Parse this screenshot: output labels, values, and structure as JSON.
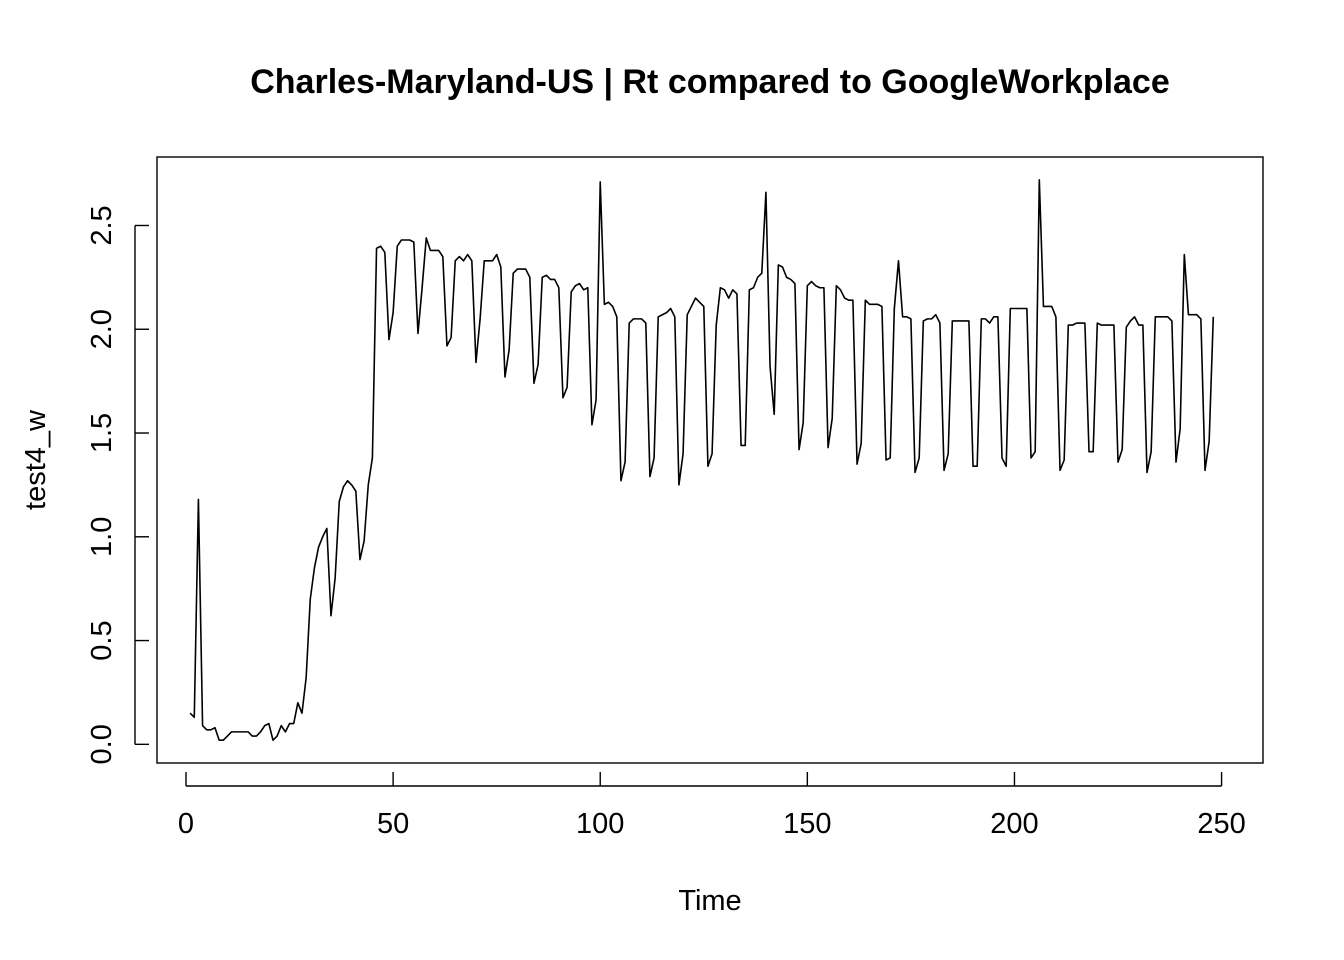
{
  "chart_data": {
    "type": "line",
    "title": "Charles-Maryland-US | Rt compared to GoogleWorkplace",
    "xlabel": "Time",
    "ylabel": "test4_w",
    "xlim": [
      -7,
      260
    ],
    "ylim": [
      -0.09,
      2.83
    ],
    "grid": false,
    "legend": "none",
    "x_ticks": [
      0,
      50,
      100,
      150,
      200,
      250
    ],
    "x_tick_labels": [
      "0",
      "50",
      "100",
      "150",
      "200",
      "250"
    ],
    "y_ticks": [
      0.0,
      0.5,
      1.0,
      1.5,
      2.0,
      2.5
    ],
    "y_tick_labels": [
      "0.0",
      "0.5",
      "1.0",
      "1.5",
      "2.0",
      "2.5"
    ],
    "series": [
      {
        "name": "",
        "x_start": 1,
        "values": [
          0.15,
          0.13,
          1.18,
          0.09,
          0.07,
          0.07,
          0.08,
          0.02,
          0.02,
          0.04,
          0.06,
          0.06,
          0.06,
          0.06,
          0.06,
          0.04,
          0.04,
          0.06,
          0.09,
          0.1,
          0.02,
          0.04,
          0.09,
          0.06,
          0.1,
          0.1,
          0.2,
          0.15,
          0.32,
          0.7,
          0.85,
          0.95,
          1.0,
          1.04,
          0.62,
          0.8,
          1.17,
          1.24,
          1.27,
          1.25,
          1.22,
          0.89,
          0.98,
          1.25,
          1.38,
          2.39,
          2.4,
          2.37,
          1.95,
          2.08,
          2.4,
          2.43,
          2.43,
          2.43,
          2.42,
          1.98,
          2.2,
          2.44,
          2.38,
          2.38,
          2.38,
          2.35,
          1.92,
          1.96,
          2.33,
          2.35,
          2.33,
          2.36,
          2.33,
          1.84,
          2.05,
          2.33,
          2.33,
          2.33,
          2.36,
          2.3,
          1.77,
          1.9,
          2.27,
          2.29,
          2.29,
          2.29,
          2.25,
          1.74,
          1.83,
          2.25,
          2.26,
          2.24,
          2.24,
          2.2,
          1.67,
          1.72,
          2.18,
          2.21,
          2.22,
          2.19,
          2.2,
          1.54,
          1.66,
          2.71,
          2.12,
          2.13,
          2.11,
          2.06,
          1.27,
          1.36,
          2.03,
          2.05,
          2.05,
          2.05,
          2.03,
          1.29,
          1.38,
          2.06,
          2.07,
          2.08,
          2.1,
          2.06,
          1.25,
          1.4,
          2.07,
          2.11,
          2.15,
          2.13,
          2.11,
          1.34,
          1.4,
          2.02,
          2.2,
          2.19,
          2.15,
          2.19,
          2.17,
          1.44,
          1.44,
          2.19,
          2.2,
          2.25,
          2.27,
          2.66,
          1.82,
          1.59,
          2.31,
          2.3,
          2.25,
          2.24,
          2.22,
          1.42,
          1.55,
          2.21,
          2.23,
          2.21,
          2.2,
          2.2,
          1.43,
          1.57,
          2.21,
          2.19,
          2.15,
          2.14,
          2.14,
          1.35,
          1.45,
          2.14,
          2.12,
          2.12,
          2.12,
          2.11,
          1.37,
          1.38,
          2.1,
          2.33,
          2.06,
          2.06,
          2.05,
          1.31,
          1.38,
          2.04,
          2.05,
          2.05,
          2.07,
          2.03,
          1.32,
          1.4,
          2.04,
          2.04,
          2.04,
          2.04,
          2.04,
          1.34,
          1.34,
          2.05,
          2.05,
          2.03,
          2.06,
          2.06,
          1.38,
          1.34,
          2.1,
          2.1,
          2.1,
          2.1,
          2.1,
          1.38,
          1.41,
          2.72,
          2.11,
          2.11,
          2.11,
          2.06,
          1.32,
          1.37,
          2.02,
          2.02,
          2.03,
          2.03,
          2.03,
          1.41,
          1.41,
          2.03,
          2.02,
          2.02,
          2.02,
          2.02,
          1.36,
          1.42,
          2.01,
          2.04,
          2.06,
          2.02,
          2.02,
          1.31,
          1.41,
          2.06,
          2.06,
          2.06,
          2.06,
          2.04,
          1.36,
          1.52,
          2.36,
          2.07,
          2.07,
          2.07,
          2.05,
          1.32,
          1.46,
          2.06
        ]
      }
    ]
  }
}
